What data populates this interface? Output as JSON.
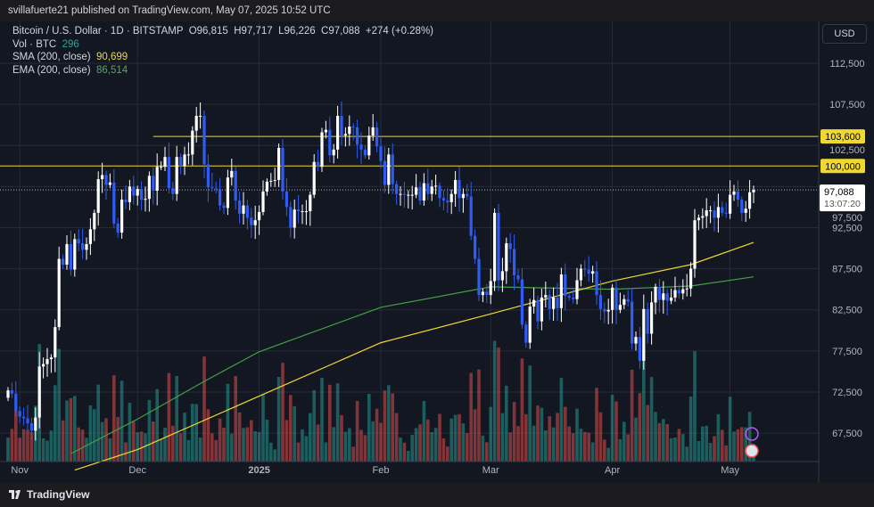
{
  "header": {
    "published": "svillafuerte21 published on TradingView.com, May 07, 2025 10:52 UTC"
  },
  "legend": {
    "symbol": "Bitcoin / U.S. Dollar · 1D · BITSTAMP",
    "open": "O96,815",
    "high": "H97,717",
    "low": "L96,226",
    "close": "C97,088",
    "change": "+274 (+0.28%)",
    "vol_label": "Vol · BTC",
    "vol_value": "296",
    "sma_label": "SMA (200, close)",
    "sma_value": "90,699",
    "ema_label": "EMA (200, close)",
    "ema_value": "86,514"
  },
  "currency_button": "USD",
  "footer": {
    "brand": "TradingView"
  },
  "colors": {
    "up": "#ffffff",
    "down": "#2f5cf5",
    "sma": "#f1d82f",
    "ema": "#43a047",
    "level": "#f1d82f",
    "vol_up": "#26a69a",
    "vol_down": "#ef5350"
  },
  "chart_data": {
    "type": "candlestick",
    "title": "Bitcoin / U.S. Dollar · 1D · BITSTAMP",
    "start_date": "2024-10-29",
    "ylim": [
      62500,
      115000
    ],
    "y_ticks": [
      "112,500",
      "107,500",
      "102,500",
      "97,500",
      "92,500",
      "87,500",
      "82,500",
      "77,500",
      "72,500",
      "67,500"
    ],
    "y_tick_values": [
      112500,
      107500,
      102500,
      97500,
      92500,
      87500,
      82500,
      77500,
      72500,
      67500
    ],
    "x_ticks": [
      {
        "label": "Nov",
        "index": 3
      },
      {
        "label": "Dec",
        "index": 33
      },
      {
        "label": "2025",
        "index": 64
      },
      {
        "label": "Feb",
        "index": 95
      },
      {
        "label": "Mar",
        "index": 123
      },
      {
        "label": "Apr",
        "index": 154
      },
      {
        "label": "May",
        "index": 184
      }
    ],
    "closes": [
      72700,
      72300,
      70200,
      69500,
      69300,
      68700,
      67800,
      69400,
      75600,
      75900,
      76500,
      76700,
      80400,
      88700,
      88000,
      90500,
      87400,
      91100,
      90600,
      89800,
      90500,
      92300,
      94300,
      98400,
      98900,
      97700,
      98000,
      93000,
      91900,
      95900,
      95600,
      97500,
      96400,
      97200,
      95900,
      96000,
      98800,
      97000,
      99900,
      99900,
      101100,
      97300,
      96600,
      101100,
      100000,
      101400,
      101400,
      104300,
      106100,
      106100,
      100200,
      97400,
      97300,
      97200,
      95200,
      94900,
      98600,
      99400,
      95800,
      94200,
      95200,
      93700,
      92800,
      93400,
      94400,
      96900,
      98100,
      98200,
      98300,
      102200,
      96900,
      95000,
      92500,
      94700,
      94500,
      94500,
      94500,
      96500,
      100500,
      99900,
      104100,
      104400,
      101300,
      102000,
      106100,
      103700,
      103900,
      104800,
      104700,
      102600,
      102000,
      101300,
      103700,
      104700,
      102400,
      100600,
      97700,
      101400,
      97800,
      96600,
      96600,
      96500,
      96500,
      96500,
      97400,
      95800,
      97900,
      96600,
      97500,
      97600,
      96100,
      95800,
      95600,
      96600,
      98300,
      96100,
      96600,
      96300,
      91500,
      88700,
      84300,
      84700,
      84300,
      86000,
      94300,
      86100,
      87200,
      90600,
      89900,
      86700,
      86200,
      80700,
      78500,
      82900,
      83700,
      81100,
      84000,
      84300,
      82600,
      84000,
      82700,
      86800,
      84200,
      84000,
      83800,
      86100,
      87500,
      87400,
      86900,
      87200,
      84300,
      82600,
      82300,
      82500,
      85200,
      82500,
      83100,
      83800,
      83500,
      78400,
      79200,
      76300,
      82600,
      79600,
      83400,
      85300,
      83700,
      84500,
      83600,
      84000,
      84900,
      84500,
      85000,
      85100,
      87500,
      93400,
      93700,
      93900,
      94600,
      94600,
      93700,
      95000,
      94300,
      94200,
      96500,
      96900,
      95900,
      94300,
      94800,
      96800,
      97088
    ],
    "first_open": 71800,
    "sma_200": [
      [
        17,
        63000
      ],
      [
        33,
        65500
      ],
      [
        64,
        72000
      ],
      [
        95,
        78500
      ],
      [
        123,
        82000
      ],
      [
        154,
        86000
      ],
      [
        174,
        88000
      ],
      [
        190,
        90699
      ]
    ],
    "ema_200": [
      [
        16,
        65000
      ],
      [
        33,
        69200
      ],
      [
        50,
        73800
      ],
      [
        64,
        77400
      ],
      [
        95,
        82800
      ],
      [
        123,
        85300
      ],
      [
        154,
        85000
      ],
      [
        174,
        85400
      ],
      [
        190,
        86514
      ]
    ],
    "levels": [
      {
        "label": "103,600",
        "value": 103600,
        "start_index": 37
      },
      {
        "label": "100,000",
        "value": 100000,
        "start_index": 0
      }
    ],
    "last_price": {
      "label": "97,088",
      "countdown": "13:07:20",
      "value": 97088
    }
  }
}
